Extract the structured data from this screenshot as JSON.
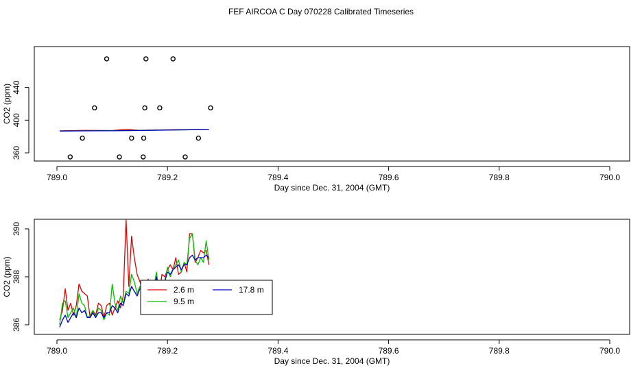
{
  "title": "FEF AIRCOA C  Day 070228  Calibrated Timeseries",
  "colors": {
    "red": "#e00000",
    "green": "#00c000",
    "blue": "#0000c0",
    "axis": "#000000"
  },
  "chart_data": [
    {
      "type": "scatter",
      "xlabel": "Day since Dec. 31, 2004 (GMT)",
      "ylabel": "CO2 (ppm)",
      "xlim": [
        789.0,
        790.0
      ],
      "ylim": [
        350,
        490
      ],
      "xticks": [
        "789.0",
        "789.2",
        "789.4",
        "789.6",
        "789.8",
        "790.0"
      ],
      "yticks": [
        "360",
        "400",
        "440"
      ],
      "ytick_values": [
        360,
        400,
        440
      ],
      "points": [
        [
          789.024,
          355
        ],
        [
          789.046,
          378
        ],
        [
          789.068,
          415
        ],
        [
          789.09,
          475
        ],
        [
          789.113,
          355
        ],
        [
          789.135,
          378
        ],
        [
          789.156,
          355
        ],
        [
          789.157,
          378
        ],
        [
          789.159,
          415
        ],
        [
          789.161,
          475
        ],
        [
          789.186,
          415
        ],
        [
          789.21,
          475
        ],
        [
          789.232,
          355
        ],
        [
          789.256,
          378
        ],
        [
          789.278,
          415
        ]
      ],
      "series": [
        {
          "color": "#e00000",
          "x": [
            789.005,
            789.05,
            789.1,
            789.125,
            789.14,
            789.15,
            789.2,
            789.25,
            789.275
          ],
          "y": [
            387,
            387.5,
            387.3,
            389,
            388,
            387.6,
            388.2,
            388.6,
            388.4
          ]
        },
        {
          "color": "#00c000",
          "x": [
            789.005,
            789.05,
            789.1,
            789.15,
            789.2,
            789.25,
            789.275
          ],
          "y": [
            386.8,
            387,
            387.1,
            387.5,
            388,
            388.4,
            388.5
          ]
        },
        {
          "color": "#0000c0",
          "x": [
            789.005,
            789.05,
            789.1,
            789.15,
            789.2,
            789.25,
            789.275
          ],
          "y": [
            386.6,
            386.9,
            387.0,
            387.4,
            387.9,
            388.3,
            388.4
          ]
        }
      ]
    },
    {
      "type": "line",
      "xlabel": "Day since Dec. 31, 2004 (GMT)",
      "ylabel": "CO2 (ppm)",
      "xlim": [
        789.0,
        790.0
      ],
      "ylim": [
        385.6,
        390.4
      ],
      "xticks": [
        "789.0",
        "789.2",
        "789.4",
        "789.6",
        "789.8",
        "790.0"
      ],
      "yticks": [
        "386",
        "388",
        "390"
      ],
      "ytick_values": [
        386,
        388,
        390
      ],
      "legend": [
        "2.6 m",
        "9.5 m",
        "17.8 m"
      ],
      "legend_position": "center",
      "series": [
        {
          "name": "2.6 m",
          "color": "#e00000",
          "x": [
            789.005,
            789.01,
            789.015,
            789.02,
            789.025,
            789.03,
            789.035,
            789.04,
            789.045,
            789.05,
            789.055,
            789.06,
            789.065,
            789.07,
            789.075,
            789.08,
            789.085,
            789.09,
            789.095,
            789.1,
            789.105,
            789.11,
            789.115,
            789.12,
            789.125,
            789.13,
            789.135,
            789.14,
            789.145,
            789.15,
            789.155,
            789.16,
            789.165,
            789.17,
            789.175,
            789.18,
            789.185,
            789.19,
            789.195,
            789.2,
            789.205,
            789.21,
            789.215,
            789.22,
            789.225,
            789.23,
            789.235,
            789.24,
            789.245,
            789.25,
            789.255,
            789.26,
            789.265,
            789.27,
            789.275
          ],
          "y": [
            386.2,
            386.6,
            387.5,
            386.6,
            386.9,
            386.4,
            386.8,
            387.7,
            387.4,
            387.3,
            387.2,
            386.3,
            386.6,
            386.4,
            386.9,
            386.8,
            386.3,
            386.8,
            386.9,
            386.4,
            386.7,
            387.0,
            386.7,
            387.2,
            390.4,
            387.6,
            389.7,
            388.8,
            388.1,
            387.8,
            387.5,
            387.5,
            387.9,
            387.6,
            387.6,
            387.8,
            387.2,
            388.1,
            388.0,
            388.3,
            388.5,
            388.3,
            388.8,
            388.1,
            388.2,
            388.6,
            388.2,
            389.8,
            389.8,
            388.6,
            388.8,
            389.1,
            389.0,
            389.1,
            388.5
          ]
        },
        {
          "name": "9.5 m",
          "color": "#00c000",
          "x": [
            789.005,
            789.01,
            789.015,
            789.02,
            789.025,
            789.03,
            789.035,
            789.04,
            789.045,
            789.05,
            789.055,
            789.06,
            789.065,
            789.07,
            789.075,
            789.08,
            789.085,
            789.09,
            789.095,
            789.1,
            789.105,
            789.11,
            789.115,
            789.12,
            789.125,
            789.13,
            789.135,
            789.14,
            789.145,
            789.15,
            789.155,
            789.16,
            789.165,
            789.17,
            789.175,
            789.18,
            789.185,
            789.19,
            789.195,
            789.2,
            789.205,
            789.21,
            789.215,
            789.22,
            789.225,
            789.23,
            789.235,
            789.24,
            789.245,
            789.25,
            789.255,
            789.26,
            789.265,
            789.27,
            789.275
          ],
          "y": [
            386.0,
            386.9,
            387.0,
            386.3,
            386.5,
            386.7,
            386.3,
            387.3,
            386.9,
            386.8,
            386.3,
            386.4,
            386.6,
            386.3,
            386.7,
            386.6,
            386.2,
            386.5,
            386.4,
            387.7,
            386.9,
            386.6,
            387.2,
            386.9,
            387.4,
            387.3,
            388.1,
            387.8,
            387.3,
            387.6,
            387.5,
            387.6,
            387.8,
            386.8,
            387.5,
            388.2,
            387.3,
            387.6,
            387.8,
            388.4,
            388.0,
            388.3,
            388.5,
            388.7,
            388.2,
            388.6,
            388.5,
            389.6,
            389.8,
            388.7,
            388.5,
            388.8,
            388.6,
            389.5,
            388.7
          ]
        },
        {
          "name": "17.8 m",
          "color": "#0000c0",
          "x": [
            789.005,
            789.01,
            789.015,
            789.02,
            789.025,
            789.03,
            789.035,
            789.04,
            789.045,
            789.05,
            789.055,
            789.06,
            789.065,
            789.07,
            789.075,
            789.08,
            789.085,
            789.09,
            789.095,
            789.1,
            789.105,
            789.11,
            789.115,
            789.12,
            789.125,
            789.13,
            789.135,
            789.14,
            789.145,
            789.15,
            789.155,
            789.16,
            789.165,
            789.17,
            789.175,
            789.18,
            789.185,
            789.19,
            789.195,
            789.2,
            789.205,
            789.21,
            789.215,
            789.22,
            789.225,
            789.23,
            789.235,
            789.24,
            789.245,
            789.25,
            789.255,
            789.26,
            789.265,
            789.27,
            789.275
          ],
          "y": [
            385.9,
            386.2,
            386.4,
            386.1,
            386.3,
            386.5,
            386.3,
            386.7,
            386.5,
            386.6,
            386.3,
            386.3,
            386.5,
            386.3,
            386.5,
            386.5,
            386.3,
            386.5,
            386.5,
            386.8,
            386.7,
            386.5,
            386.9,
            386.8,
            387.3,
            387.2,
            387.6,
            387.4,
            387.2,
            387.5,
            387.5,
            387.6,
            387.7,
            386.9,
            387.4,
            388.0,
            387.4,
            387.6,
            387.8,
            388.2,
            388.1,
            388.3,
            388.4,
            388.5,
            388.3,
            388.5,
            388.5,
            388.8,
            388.9,
            388.7,
            388.8,
            388.8,
            388.8,
            388.9,
            388.8
          ]
        }
      ]
    }
  ]
}
